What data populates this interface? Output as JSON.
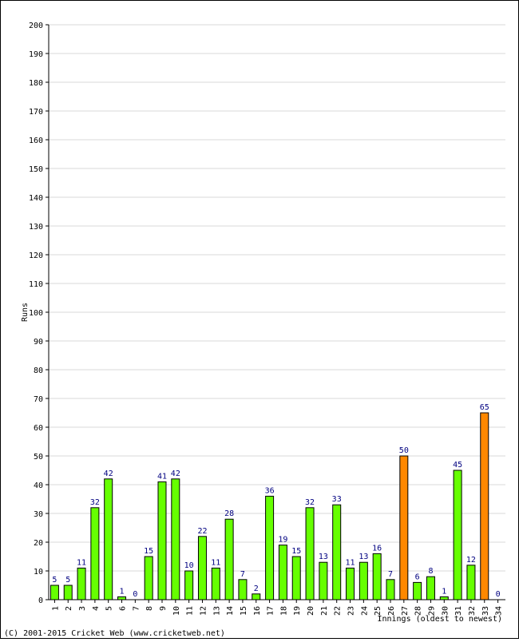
{
  "chart_data": {
    "type": "bar",
    "ylabel": "Runs",
    "xlabel": "Innings (oldest to newest)",
    "ylim": [
      0,
      200
    ],
    "yticks": [
      0,
      10,
      20,
      30,
      40,
      50,
      60,
      70,
      80,
      90,
      100,
      110,
      120,
      130,
      140,
      150,
      160,
      170,
      180,
      190,
      200
    ],
    "grid": true,
    "categories": [
      "1",
      "2",
      "3",
      "4",
      "5",
      "6",
      "7",
      "8",
      "9",
      "10",
      "11",
      "12",
      "13",
      "14",
      "15",
      "16",
      "17",
      "18",
      "19",
      "20",
      "21",
      "22",
      "23",
      "24",
      "25",
      "26",
      "27",
      "28",
      "29",
      "30",
      "31",
      "32",
      "33",
      "34"
    ],
    "values": [
      5,
      5,
      11,
      32,
      42,
      1,
      0,
      15,
      41,
      42,
      10,
      22,
      11,
      28,
      7,
      2,
      36,
      19,
      15,
      32,
      13,
      33,
      11,
      13,
      16,
      7,
      50,
      6,
      8,
      1,
      45,
      12,
      65,
      0
    ],
    "highlight_indices": [
      26,
      32
    ],
    "colors": {
      "bar": "#66ff00",
      "highlight": "#ff8800",
      "bar_outline": "#000000",
      "value_label": "#000080",
      "grid": "#d8d8d8",
      "axis": "#000000",
      "text": "#000000"
    }
  },
  "footer": {
    "copyright": "(C) 2001-2015 Cricket Web (www.cricketweb.net)"
  }
}
